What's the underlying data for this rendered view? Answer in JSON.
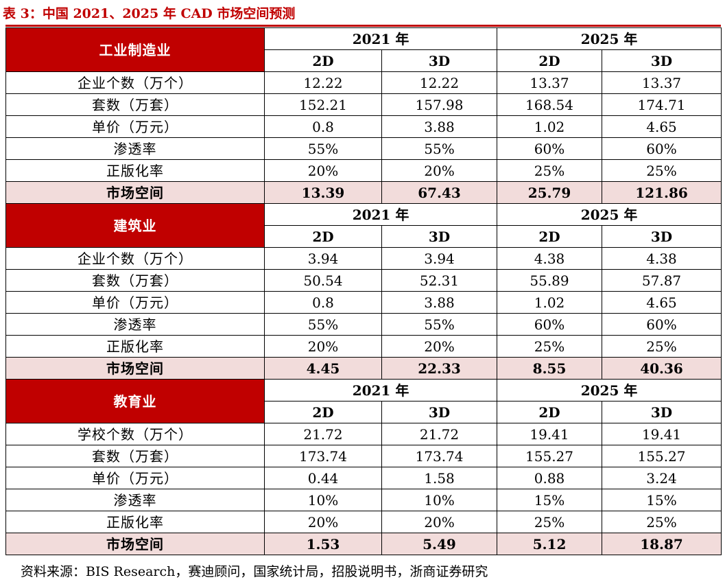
{
  "title": "表 3：中国 2021、2025 年 CAD 市场空间预测",
  "years": [
    "2021 年",
    "2025 年"
  ],
  "dims": [
    "2D",
    "3D"
  ],
  "sections": [
    {
      "name": "工业制造业",
      "rows": [
        {
          "label": "企业个数（万个）",
          "values": [
            "12.22",
            "12.22",
            "13.37",
            "13.37"
          ]
        },
        {
          "label": "套数（万套）",
          "values": [
            "152.21",
            "157.98",
            "168.54",
            "174.71"
          ]
        },
        {
          "label": "单价（万元）",
          "values": [
            "0.8",
            "3.88",
            "1.02",
            "4.65"
          ]
        },
        {
          "label": "渗透率",
          "values": [
            "55%",
            "55%",
            "60%",
            "60%"
          ]
        },
        {
          "label": "正版化率",
          "values": [
            "20%",
            "20%",
            "25%",
            "25%"
          ]
        },
        {
          "label": "市场空间",
          "values": [
            "13.39",
            "67.43",
            "25.79",
            "121.86"
          ]
        }
      ]
    },
    {
      "name": "建筑业",
      "rows": [
        {
          "label": "企业个数（万个）",
          "values": [
            "3.94",
            "3.94",
            "4.38",
            "4.38"
          ]
        },
        {
          "label": "套数（万套）",
          "values": [
            "50.54",
            "52.31",
            "55.89",
            "57.87"
          ]
        },
        {
          "label": "单价（万元）",
          "values": [
            "0.8",
            "3.88",
            "1.02",
            "4.65"
          ]
        },
        {
          "label": "渗透率",
          "values": [
            "55%",
            "55%",
            "60%",
            "60%"
          ]
        },
        {
          "label": "正版化率",
          "values": [
            "20%",
            "20%",
            "25%",
            "25%"
          ]
        },
        {
          "label": "市场空间",
          "values": [
            "4.45",
            "22.33",
            "8.55",
            "40.36"
          ]
        }
      ]
    },
    {
      "name": "教育业",
      "rows": [
        {
          "label": "学校个数（万个）",
          "values": [
            "21.72",
            "21.72",
            "19.41",
            "19.41"
          ]
        },
        {
          "label": "套数（万套）",
          "values": [
            "173.74",
            "173.74",
            "155.27",
            "155.27"
          ]
        },
        {
          "label": "单价（万元）",
          "values": [
            "0.44",
            "1.58",
            "0.88",
            "3.24"
          ]
        },
        {
          "label": "渗透率",
          "values": [
            "10%",
            "10%",
            "15%",
            "15%"
          ]
        },
        {
          "label": "正版化率",
          "values": [
            "20%",
            "20%",
            "25%",
            "25%"
          ]
        },
        {
          "label": "市场空间",
          "values": [
            "1.53",
            "5.49",
            "5.12",
            "18.87"
          ]
        }
      ]
    }
  ],
  "source": "资料来源：BIS Research，赛迪顾问，国家统计局，招股说明书，浙商证券研究"
}
